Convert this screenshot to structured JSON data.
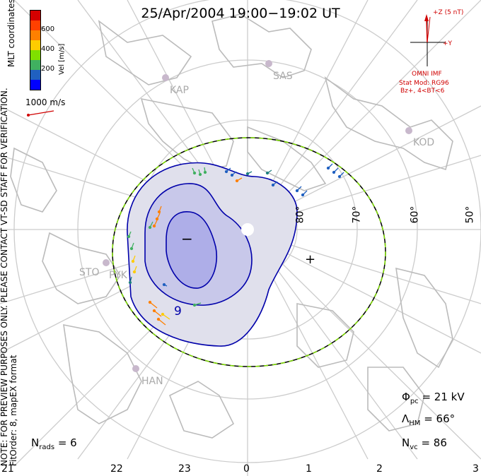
{
  "title": "25/Apr/2004  19:00−19:02  UT",
  "side_note": {
    "line1": "NOTE: FOR PREVIEW PURPOSES ONLY. PLEASE CONTACT VT-SD STAFF FOR VERIFICATION.",
    "line2": "FitOrder: 8,  mapEX format"
  },
  "coordinate_system": "MLT coordinates",
  "colorbar": {
    "label": "Vel [m/s]",
    "ticks": [
      "600",
      "400",
      "200"
    ],
    "colors": [
      "#d40000",
      "#ff8000",
      "#ffcc00",
      "#80e000",
      "#40b060",
      "#208080",
      "#2060c0",
      "#0000ff"
    ]
  },
  "reference_vector": {
    "label": "1000 m/s",
    "color": "#d00000"
  },
  "imf": {
    "label_z": "+Z (5 nT)",
    "label_y": "+Y",
    "source": "OMNI IMF",
    "stat_mod": "Stat Mod: RG96",
    "condition": "Bz+, 4<BT<6",
    "color": "#d00000"
  },
  "stations": [
    "KAP",
    "SAS",
    "KOD",
    "STO",
    "PYK",
    "HAN"
  ],
  "latitude_labels": [
    "80°",
    "70°",
    "60°",
    "50°"
  ],
  "mlt_labels": [
    "21",
    "22",
    "23",
    "0",
    "1",
    "2",
    "3"
  ],
  "stats": {
    "phi_pc": {
      "symbol": "Φ",
      "sub": "pc",
      "value": "= 21 kV"
    },
    "lambda_hm": {
      "symbol": "Λ",
      "sub": "HM",
      "value": "= 66°"
    },
    "n_vc": {
      "symbol": "N",
      "sub": "vc",
      "value": "= 86"
    },
    "n_rads": {
      "symbol": "N",
      "sub": "rads",
      "value": "= 6"
    }
  },
  "contour_labels": {
    "minus": "−",
    "plus": "+",
    "nine": "9"
  },
  "colors": {
    "grid": "#cccccc",
    "coast": "#bbbbbb",
    "contour": "#0000aa",
    "hm_boundary_dash": "#80e000"
  }
}
